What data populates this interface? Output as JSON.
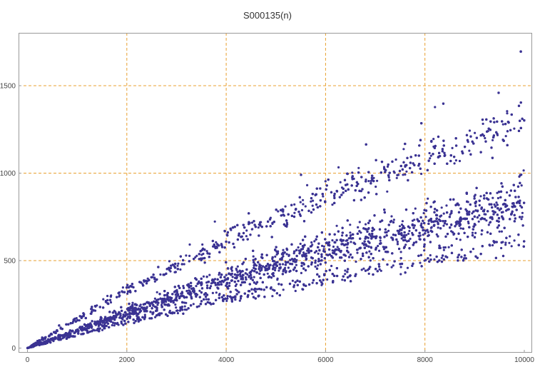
{
  "chart_data": {
    "type": "scatter",
    "title": "S000135(n)",
    "xlabel": "",
    "ylabel": "",
    "xlim": [
      0,
      10000
    ],
    "ylim": [
      0,
      1700
    ],
    "x_ticks": [
      0,
      2000,
      4000,
      6000,
      8000,
      10000
    ],
    "y_ticks": [
      0,
      500,
      1000,
      1500
    ],
    "x_tick_labels": [
      "0",
      "2000",
      "4000",
      "6000",
      "8000",
      "10000"
    ],
    "y_tick_labels": [
      "0",
      "500",
      "1000",
      "1500"
    ],
    "grid": true,
    "point_count": 10000,
    "series": [
      {
        "color": "#3b3393",
        "trend_points": [
          {
            "x": 0,
            "y": 0
          },
          {
            "x": 2000,
            "y": 200
          },
          {
            "x": 4000,
            "y": 390
          },
          {
            "x": 6000,
            "y": 560
          },
          {
            "x": 8000,
            "y": 690
          },
          {
            "x": 10000,
            "y": 820
          }
        ],
        "upper_band_points": [
          {
            "x": 0,
            "y": 0
          },
          {
            "x": 2000,
            "y": 330
          },
          {
            "x": 4000,
            "y": 620
          },
          {
            "x": 6000,
            "y": 860
          },
          {
            "x": 8000,
            "y": 1080
          },
          {
            "x": 10000,
            "y": 1300
          }
        ],
        "lower_band_points": [
          {
            "x": 0,
            "y": 0
          },
          {
            "x": 2000,
            "y": 150
          },
          {
            "x": 4000,
            "y": 280
          },
          {
            "x": 6000,
            "y": 400
          },
          {
            "x": 8000,
            "y": 500
          },
          {
            "x": 10000,
            "y": 600
          }
        ],
        "max_point": {
          "x": 9930,
          "y": 1695
        }
      }
    ]
  },
  "colors": {
    "points": "#3b3393",
    "grid": "#e8a030",
    "axis": "#999999"
  }
}
